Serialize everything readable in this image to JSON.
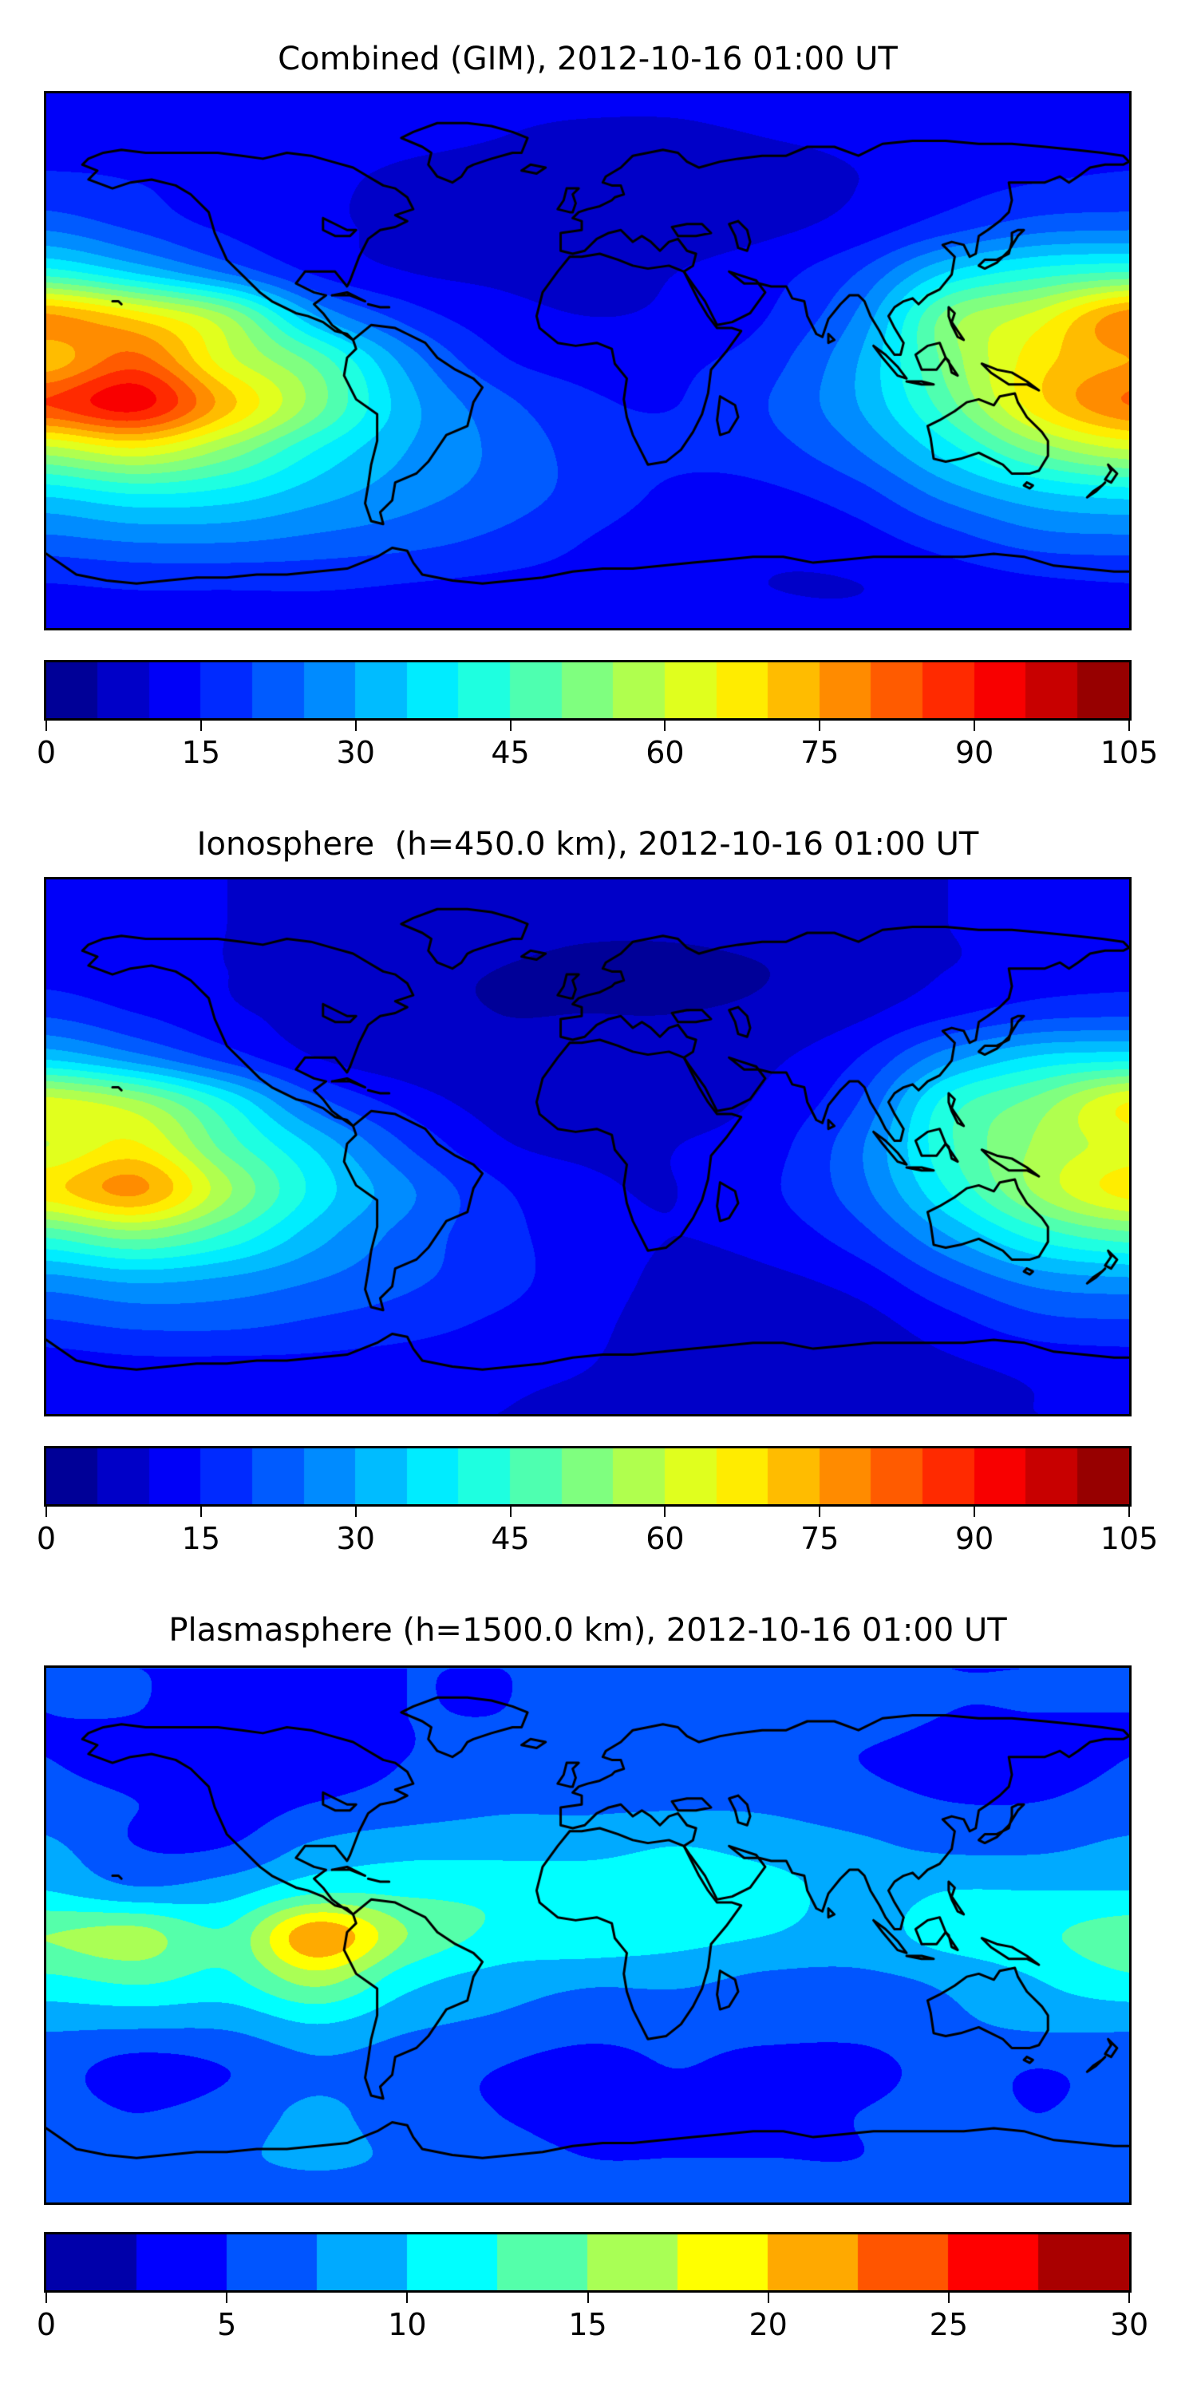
{
  "figure": {
    "background": "#ffffff",
    "border_color": "#000000",
    "text_color": "#000000"
  },
  "chart_data": [
    {
      "type": "heatmap",
      "title": "Combined (GIM), 2012-10-16 01:00 UT",
      "projection": "equirectangular-world-map",
      "colormap": "jet",
      "grid": false,
      "vmin": 0,
      "vmax": 105,
      "level_step": 5,
      "n_levels": 21,
      "colorbar_position": "bottom",
      "colorbar_ticks": [
        0,
        15,
        30,
        45,
        60,
        75,
        90,
        105
      ],
      "colorbar_tick_labels": [
        "0",
        "15",
        "30",
        "45",
        "60",
        "75",
        "90",
        "105"
      ],
      "lon": [
        -180,
        -150,
        -120,
        -90,
        -60,
        -30,
        0,
        30,
        60,
        90,
        120,
        150,
        180
      ],
      "lat": [
        90,
        75,
        60,
        45,
        30,
        15,
        0,
        -15,
        -30,
        -45,
        -60,
        -75,
        -90
      ],
      "values": [
        [
          13,
          13,
          13,
          12,
          12,
          11,
          11,
          11,
          12,
          12,
          13,
          13,
          13
        ],
        [
          14,
          14,
          13,
          12,
          11,
          10,
          9,
          9,
          10,
          11,
          13,
          14,
          14
        ],
        [
          16,
          15,
          13,
          11,
          9,
          8,
          7,
          7,
          8,
          10,
          13,
          15,
          16
        ],
        [
          24,
          19,
          14,
          11,
          9,
          8,
          8,
          8,
          9,
          12,
          18,
          23,
          24
        ],
        [
          42,
          34,
          24,
          14,
          10,
          9,
          9,
          10,
          13,
          20,
          35,
          42,
          45
        ],
        [
          76,
          68,
          55,
          30,
          18,
          12,
          10,
          11,
          15,
          26,
          52,
          62,
          78
        ],
        [
          72,
          82,
          62,
          48,
          28,
          16,
          13,
          14,
          18,
          30,
          52,
          68,
          75
        ],
        [
          85,
          92,
          72,
          52,
          32,
          22,
          16,
          15,
          20,
          30,
          48,
          68,
          80
        ],
        [
          58,
          64,
          54,
          40,
          30,
          24,
          18,
          16,
          18,
          25,
          38,
          52,
          60
        ],
        [
          36,
          40,
          38,
          32,
          27,
          23,
          18,
          14,
          14,
          18,
          27,
          34,
          37
        ],
        [
          24,
          26,
          26,
          24,
          22,
          19,
          15,
          12,
          11,
          13,
          18,
          23,
          24
        ],
        [
          15,
          16,
          16,
          16,
          15,
          14,
          13,
          11,
          10,
          10,
          12,
          14,
          15
        ],
        [
          12,
          12,
          12,
          12,
          12,
          12,
          11,
          11,
          11,
          11,
          12,
          12,
          12
        ]
      ]
    },
    {
      "type": "heatmap",
      "title": "Ionosphere  (h=450.0 km), 2012-10-16 01:00 UT",
      "projection": "equirectangular-world-map",
      "colormap": "jet",
      "grid": false,
      "vmin": 0,
      "vmax": 105,
      "level_step": 5,
      "n_levels": 21,
      "colorbar_position": "bottom",
      "colorbar_ticks": [
        0,
        15,
        30,
        45,
        60,
        75,
        90,
        105
      ],
      "colorbar_tick_labels": [
        "0",
        "15",
        "30",
        "45",
        "60",
        "75",
        "90",
        "105"
      ],
      "lon": [
        -180,
        -150,
        -120,
        -90,
        -60,
        -30,
        0,
        30,
        60,
        90,
        120,
        150,
        180
      ],
      "lat": [
        90,
        75,
        60,
        45,
        30,
        15,
        0,
        -15,
        -30,
        -45,
        -60,
        -75,
        -90
      ],
      "values": [
        [
          10,
          10,
          10,
          9,
          9,
          8,
          8,
          8,
          9,
          9,
          10,
          10,
          10
        ],
        [
          11,
          11,
          10,
          9,
          8,
          7,
          6,
          6,
          7,
          8,
          10,
          11,
          11
        ],
        [
          13,
          12,
          10,
          8,
          6,
          5,
          4,
          4,
          5,
          7,
          10,
          12,
          13
        ],
        [
          19,
          15,
          11,
          8,
          6,
          5,
          5,
          5,
          6,
          9,
          14,
          18,
          19
        ],
        [
          34,
          27,
          18,
          10,
          7,
          6,
          6,
          7,
          9,
          15,
          28,
          36,
          38
        ],
        [
          62,
          56,
          40,
          22,
          13,
          8,
          7,
          8,
          11,
          20,
          42,
          52,
          65
        ],
        [
          60,
          66,
          48,
          34,
          20,
          11,
          9,
          10,
          13,
          24,
          44,
          56,
          62
        ],
        [
          68,
          76,
          56,
          38,
          26,
          16,
          11,
          10,
          14,
          23,
          40,
          56,
          67
        ],
        [
          46,
          52,
          44,
          32,
          23,
          17,
          12,
          10,
          12,
          18,
          30,
          42,
          48
        ],
        [
          28,
          31,
          29,
          25,
          21,
          17,
          12,
          9,
          9,
          12,
          20,
          27,
          29
        ],
        [
          19,
          21,
          21,
          19,
          17,
          14,
          11,
          8,
          7,
          8,
          13,
          18,
          19
        ],
        [
          12,
          13,
          13,
          13,
          12,
          11,
          10,
          8,
          7,
          7,
          9,
          11,
          12
        ],
        [
          10,
          10,
          10,
          10,
          10,
          10,
          9,
          8,
          8,
          8,
          9,
          10,
          10
        ]
      ]
    },
    {
      "type": "heatmap",
      "title": "Plasmasphere (h=1500.0 km), 2012-10-16 01:00 UT",
      "projection": "equirectangular-world-map",
      "colormap": "jet",
      "grid": false,
      "vmin": 0,
      "vmax": 30,
      "level_step": 2.5,
      "n_levels": 12,
      "colorbar_position": "bottom",
      "colorbar_ticks": [
        0,
        5,
        10,
        15,
        20,
        25,
        30
      ],
      "colorbar_tick_labels": [
        "0",
        "5",
        "10",
        "15",
        "20",
        "25",
        "30"
      ],
      "lon": [
        -180,
        -150,
        -120,
        -90,
        -60,
        -30,
        0,
        30,
        60,
        90,
        120,
        150,
        180
      ],
      "lat": [
        90,
        75,
        60,
        45,
        30,
        15,
        0,
        -15,
        -30,
        -45,
        -60,
        -75,
        -90
      ],
      "values": [
        [
          5,
          5,
          5,
          5,
          5,
          5,
          5,
          5,
          5,
          5,
          5,
          5,
          5
        ],
        [
          5,
          5,
          4,
          4,
          5,
          5,
          6,
          6,
          6,
          6,
          5,
          5,
          5
        ],
        [
          5,
          4,
          4,
          4,
          5,
          6,
          6,
          6,
          6,
          5,
          4,
          4,
          5
        ],
        [
          6,
          5,
          4,
          5,
          6,
          7,
          7,
          7,
          7,
          6,
          5,
          5,
          6
        ],
        [
          8,
          5,
          5,
          8,
          9,
          9,
          9,
          10,
          9,
          8,
          7,
          7,
          8
        ],
        [
          10,
          8,
          9,
          12,
          12,
          12,
          12,
          12,
          11,
          9,
          10,
          10,
          10
        ],
        [
          15,
          16,
          13,
          22,
          15,
          12,
          12,
          11,
          10,
          9,
          11,
          12,
          14
        ],
        [
          12,
          13,
          12,
          16,
          11,
          9,
          8,
          8,
          7,
          7,
          8,
          10,
          12
        ],
        [
          8,
          8,
          8,
          10,
          8,
          7,
          6,
          6,
          6,
          6,
          7,
          8,
          8
        ],
        [
          6,
          4,
          5,
          7,
          6,
          5,
          4,
          5,
          4,
          4,
          6,
          5,
          6
        ],
        [
          6,
          5,
          6,
          8,
          6,
          5,
          4,
          4,
          4,
          5,
          6,
          5,
          6
        ],
        [
          6,
          6,
          7,
          8,
          7,
          6,
          5,
          5,
          5,
          5,
          6,
          6,
          6
        ],
        [
          6,
          6,
          6,
          6,
          6,
          6,
          6,
          6,
          6,
          6,
          6,
          6,
          6
        ]
      ]
    }
  ]
}
